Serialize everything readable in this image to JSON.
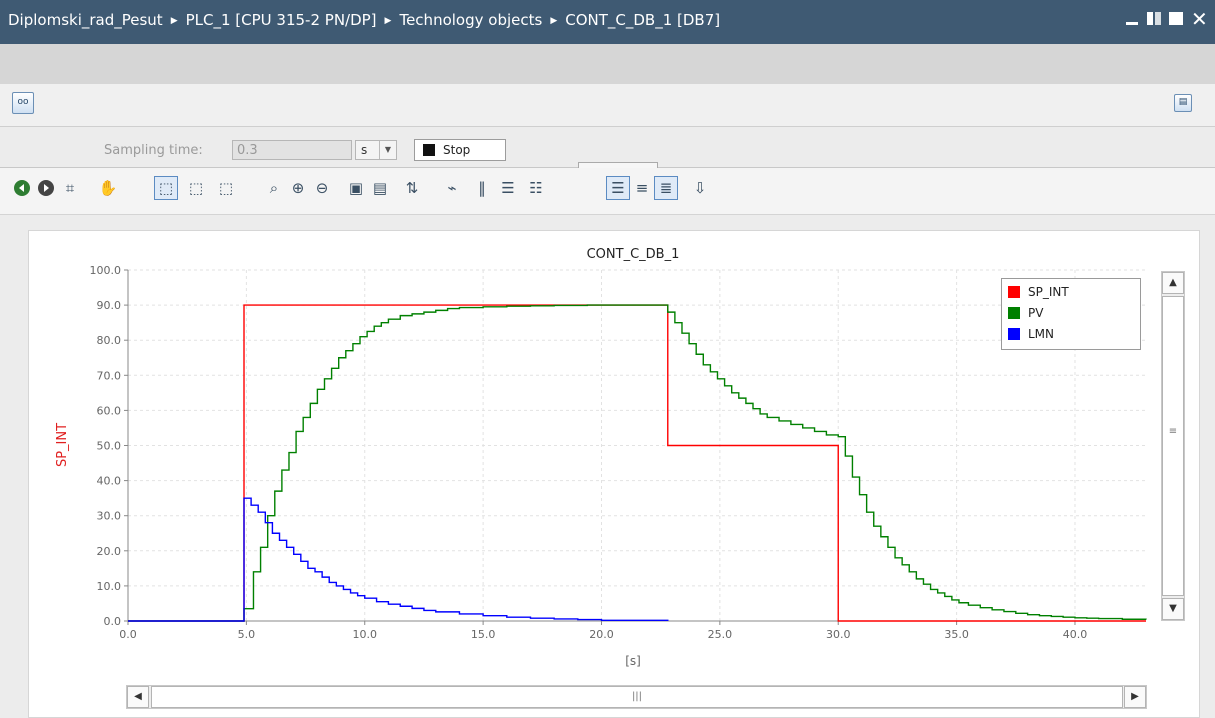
{
  "window": {
    "breadcrumb": [
      "Diplomski_rad_Pesut",
      "PLC_1 [CPU 315-2 PN/DP]",
      "Technology objects",
      "CONT_C_DB_1 [DB7]"
    ]
  },
  "controls": {
    "sampling_label": "Sampling time:",
    "sampling_value": "0.3",
    "sampling_unit": "s",
    "stop_label": "Stop"
  },
  "icons": {
    "toolbar_top_left": "glasses-monitor-icon",
    "toolbar_top_right": "window-settings-icon",
    "trend_toolbar": [
      "back-icon",
      "forward-icon",
      "snapshot-icon",
      "pan-icon",
      "zoom-box-icon",
      "zoom-x-icon",
      "zoom-y-icon",
      "zoom-100-icon",
      "zoom-in-icon",
      "zoom-out-icon",
      "fit-icon",
      "fit-all-icon",
      "scale-icon",
      "signal-icon",
      "cursor-v-icon",
      "cursor-h-icon",
      "legend-list-icon",
      "legend-left-icon",
      "legend-right-icon",
      "export-icon"
    ]
  },
  "colors": {
    "sp_int": "#ff0000",
    "pv": "#008000",
    "lmn": "#0000ff",
    "titlebar": "#3f5a73"
  },
  "chart_data": {
    "type": "line",
    "title": "CONT_C_DB_1",
    "ylabel": "SP_INT",
    "xlabel": "[s]",
    "xlim": [
      0,
      43
    ],
    "ylim": [
      0,
      100
    ],
    "x_ticks": [
      "0.0",
      "5.0",
      "10.0",
      "15.0",
      "20.0",
      "25.0",
      "30.0",
      "35.0",
      "40.0"
    ],
    "y_ticks": [
      "0.0",
      "10.0",
      "20.0",
      "30.0",
      "40.0",
      "50.0",
      "60.0",
      "70.0",
      "80.0",
      "90.0",
      "100.0"
    ],
    "series": [
      {
        "name": "SP_INT",
        "color": "#ff0000",
        "step": true,
        "x": [
          0,
          4.9,
          4.9,
          22.8,
          22.8,
          30.0,
          30.0,
          43
        ],
        "y": [
          0,
          0,
          90,
          90,
          50,
          50,
          0,
          0
        ]
      },
      {
        "name": "PV",
        "color": "#008000",
        "step": true,
        "x": [
          0,
          4.9,
          5.3,
          5.6,
          5.9,
          6.2,
          6.5,
          6.8,
          7.1,
          7.4,
          7.7,
          8.0,
          8.3,
          8.6,
          8.9,
          9.2,
          9.5,
          9.8,
          10.1,
          10.4,
          10.7,
          11.0,
          11.5,
          12.0,
          12.5,
          13.0,
          13.5,
          14.0,
          15.0,
          16.0,
          17.0,
          18.0,
          19.4,
          22.8,
          23.1,
          23.4,
          23.7,
          24.0,
          24.3,
          24.6,
          24.9,
          25.2,
          25.5,
          25.8,
          26.1,
          26.4,
          26.7,
          27.0,
          27.5,
          28.0,
          28.5,
          29.0,
          29.5,
          30.0,
          30.3,
          30.6,
          30.9,
          31.2,
          31.5,
          31.8,
          32.1,
          32.4,
          32.7,
          33.0,
          33.3,
          33.6,
          33.9,
          34.2,
          34.5,
          34.8,
          35.1,
          35.5,
          36.0,
          36.5,
          37.0,
          37.5,
          38.0,
          38.5,
          39.0,
          39.5,
          40.0,
          40.5,
          41.0,
          42.0,
          43.0
        ],
        "y": [
          0,
          3.5,
          14,
          21,
          30,
          37,
          43,
          48,
          54,
          58,
          62,
          66,
          69,
          72,
          75,
          77,
          79,
          81,
          82.5,
          84,
          85,
          86,
          87,
          87.5,
          88,
          88.5,
          89,
          89.3,
          89.5,
          89.7,
          89.8,
          89.9,
          90,
          88,
          85,
          82,
          79,
          76,
          73,
          71,
          69,
          67,
          65,
          63.5,
          62,
          60.5,
          59,
          58,
          57,
          56,
          55,
          54,
          53,
          52.5,
          47,
          41,
          36,
          31,
          27,
          24,
          21,
          18,
          16,
          14,
          12,
          10.5,
          9,
          8,
          7,
          6,
          5.2,
          4.5,
          3.8,
          3.2,
          2.7,
          2.2,
          1.8,
          1.5,
          1.3,
          1.1,
          0.9,
          0.8,
          0.7,
          0.5,
          0.4
        ]
      },
      {
        "name": "LMN",
        "color": "#0000ff",
        "step": true,
        "x": [
          0,
          4.9,
          5.2,
          5.5,
          5.8,
          6.1,
          6.4,
          6.7,
          7.0,
          7.3,
          7.6,
          7.9,
          8.2,
          8.5,
          8.8,
          9.1,
          9.4,
          9.7,
          10.0,
          10.5,
          11.0,
          11.5,
          12.0,
          12.5,
          13.0,
          14.0,
          15.0,
          16.0,
          17.0,
          18.0,
          19.0,
          20.0,
          22.8
        ],
        "y": [
          0,
          35,
          33,
          31,
          28,
          25,
          23,
          21,
          19,
          17,
          15,
          14,
          12.5,
          11,
          10,
          9,
          8,
          7.2,
          6.5,
          5.5,
          4.8,
          4.2,
          3.6,
          3.0,
          2.6,
          2.0,
          1.5,
          1.1,
          0.8,
          0.6,
          0.4,
          0.2,
          0
        ]
      }
    ],
    "legend_position": "top-right",
    "grid": true
  }
}
